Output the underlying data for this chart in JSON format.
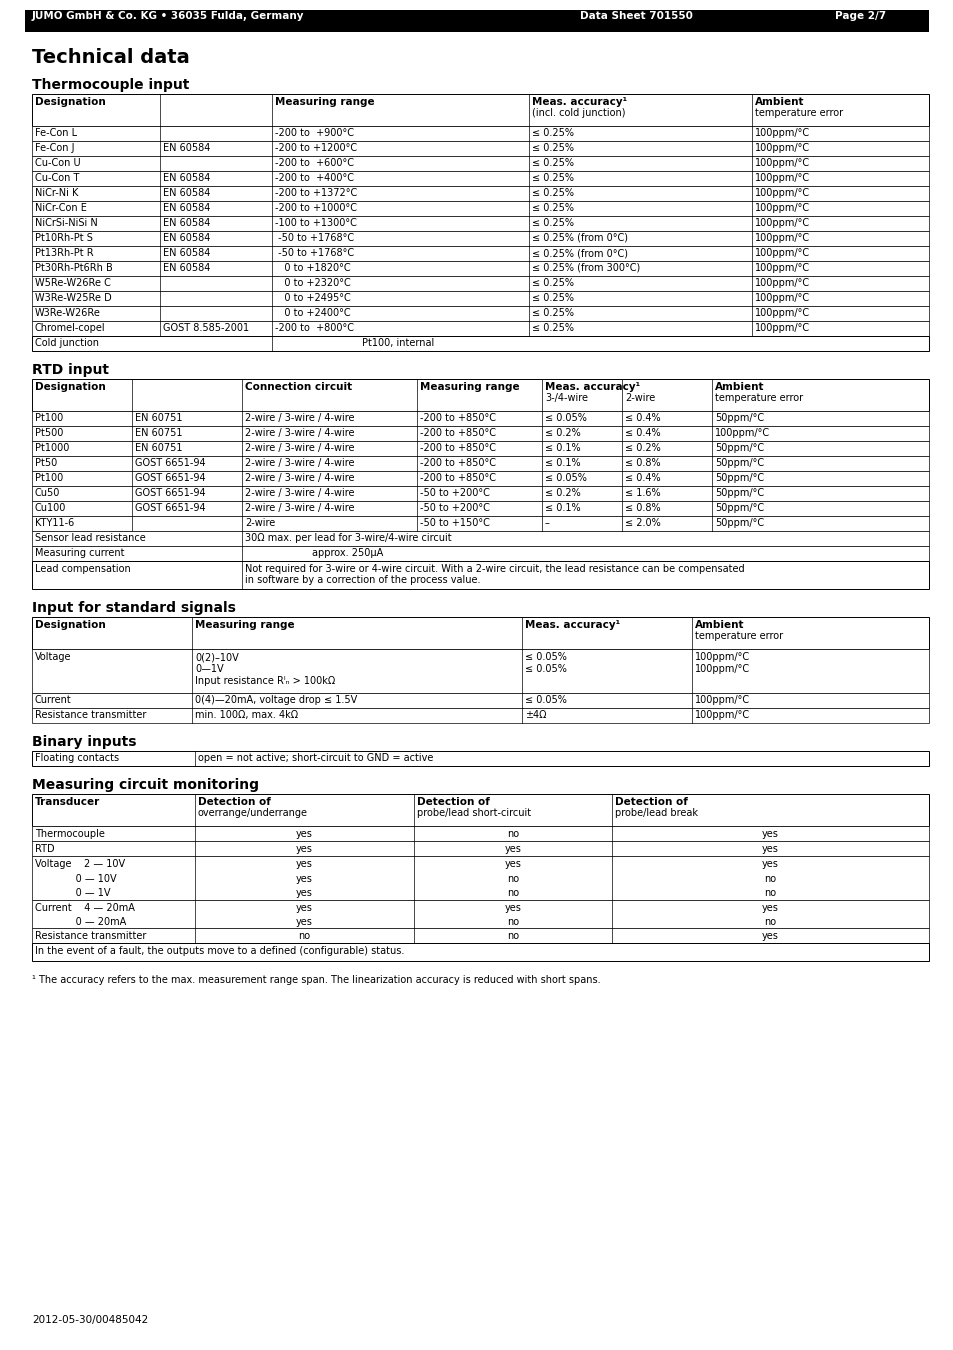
{
  "header_left": "JUMO GmbH & Co. KG • 36035 Fulda, Germany",
  "header_mid": "Data Sheet 701550",
  "header_right": "Page 2/7",
  "main_title": "Technical data",
  "sec1": "Thermocouple input",
  "sec2": "RTD input",
  "sec3": "Input for standard signals",
  "sec4": "Binary inputs",
  "sec5": "Measuring circuit monitoring",
  "tc_rows": [
    [
      "Fe-Con L",
      "",
      "-200 to  +900°C",
      "≤ 0.25%",
      "100ppm/°C"
    ],
    [
      "Fe-Con J",
      "EN 60584",
      "-200 to +1200°C",
      "≤ 0.25%",
      "100ppm/°C"
    ],
    [
      "Cu-Con U",
      "",
      "-200 to  +600°C",
      "≤ 0.25%",
      "100ppm/°C"
    ],
    [
      "Cu-Con T",
      "EN 60584",
      "-200 to  +400°C",
      "≤ 0.25%",
      "100ppm/°C"
    ],
    [
      "NiCr-Ni K",
      "EN 60584",
      "-200 to +1372°C",
      "≤ 0.25%",
      "100ppm/°C"
    ],
    [
      "NiCr-Con E",
      "EN 60584",
      "-200 to +1000°C",
      "≤ 0.25%",
      "100ppm/°C"
    ],
    [
      "NiCrSi-NiSi N",
      "EN 60584",
      "-100 to +1300°C",
      "≤ 0.25%",
      "100ppm/°C"
    ],
    [
      "Pt10Rh-Pt S",
      "EN 60584",
      " -50 to +1768°C",
      "≤ 0.25% (from 0°C)",
      "100ppm/°C"
    ],
    [
      "Pt13Rh-Pt R",
      "EN 60584",
      " -50 to +1768°C",
      "≤ 0.25% (from 0°C)",
      "100ppm/°C"
    ],
    [
      "Pt30Rh-Pt6Rh B",
      "EN 60584",
      "   0 to +1820°C",
      "≤ 0.25% (from 300°C)",
      "100ppm/°C"
    ],
    [
      "W5Re-W26Re C",
      "",
      "   0 to +2320°C",
      "≤ 0.25%",
      "100ppm/°C"
    ],
    [
      "W3Re-W25Re D",
      "",
      "   0 to +2495°C",
      "≤ 0.25%",
      "100ppm/°C"
    ],
    [
      "W3Re-W26Re",
      "",
      "   0 to +2400°C",
      "≤ 0.25%",
      "100ppm/°C"
    ],
    [
      "Chromel-copel",
      "GOST 8.585-2001",
      "-200 to  +800°C",
      "≤ 0.25%",
      "100ppm/°C"
    ]
  ],
  "rtd_rows": [
    [
      "Pt100",
      "EN 60751",
      "2-wire / 3-wire / 4-wire",
      "-200 to +850°C",
      "≤ 0.05%",
      "≤ 0.4%",
      "50ppm/°C"
    ],
    [
      "Pt500",
      "EN 60751",
      "2-wire / 3-wire / 4-wire",
      "-200 to +850°C",
      "≤ 0.2%",
      "≤ 0.4%",
      "100ppm/°C"
    ],
    [
      "Pt1000",
      "EN 60751",
      "2-wire / 3-wire / 4-wire",
      "-200 to +850°C",
      "≤ 0.1%",
      "≤ 0.2%",
      "50ppm/°C"
    ],
    [
      "Pt50",
      "GOST 6651-94",
      "2-wire / 3-wire / 4-wire",
      "-200 to +850°C",
      "≤ 0.1%",
      "≤ 0.8%",
      "50ppm/°C"
    ],
    [
      "Pt100",
      "GOST 6651-94",
      "2-wire / 3-wire / 4-wire",
      "-200 to +850°C",
      "≤ 0.05%",
      "≤ 0.4%",
      "50ppm/°C"
    ],
    [
      "Cu50",
      "GOST 6651-94",
      "2-wire / 3-wire / 4-wire",
      "-50 to +200°C",
      "≤ 0.2%",
      "≤ 1.6%",
      "50ppm/°C"
    ],
    [
      "Cu100",
      "GOST 6651-94",
      "2-wire / 3-wire / 4-wire",
      "-50 to +200°C",
      "≤ 0.1%",
      "≤ 0.8%",
      "50ppm/°C"
    ],
    [
      "KTY11-6",
      "",
      "2-wire",
      "-50 to +150°C",
      "–",
      "≤ 2.0%",
      "50ppm/°C"
    ]
  ],
  "footnote": "¹ The accuracy refers to the max. measurement range span. The linearization accuracy is reduced with short spans.",
  "footer_date": "2012-05-30/00485042"
}
